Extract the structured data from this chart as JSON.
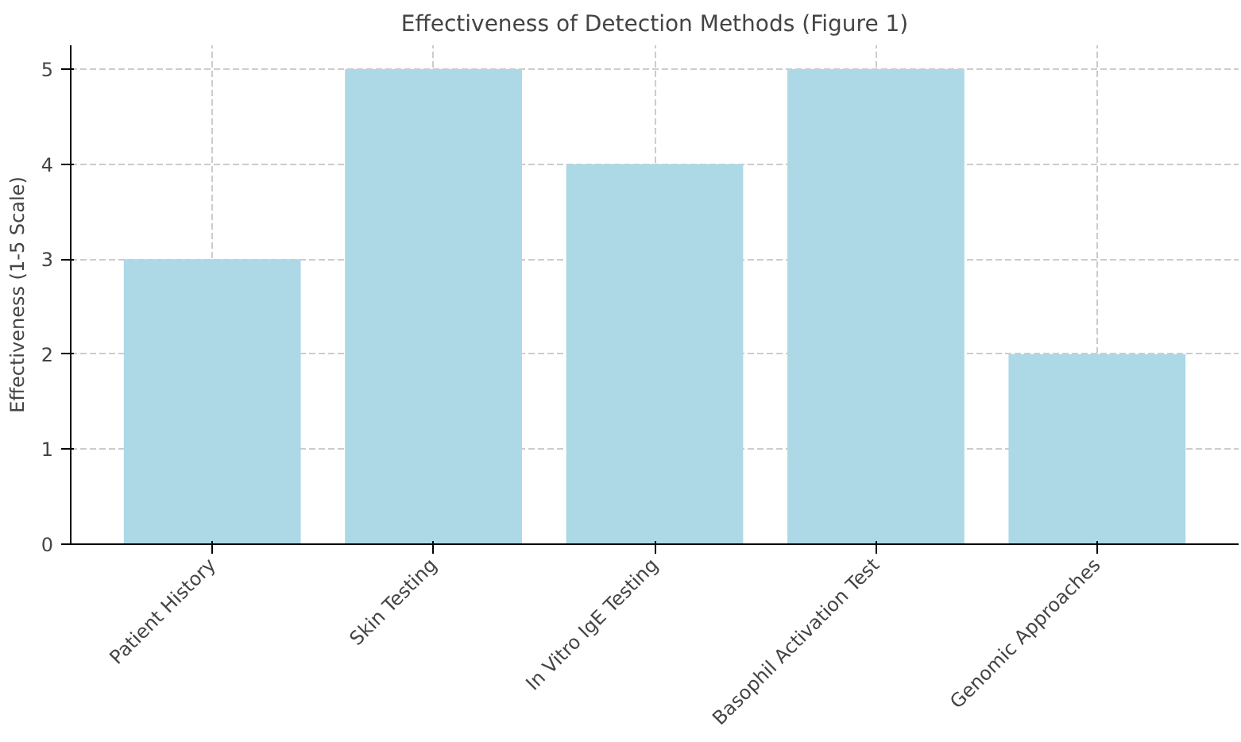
{
  "chart_data": {
    "type": "bar",
    "title": "Effectiveness of Detection Methods (Figure 1)",
    "ylabel": "Effectiveness (1-5 Scale)",
    "categories": [
      "Patient History",
      "Skin Testing",
      "In Vitro IgE Testing",
      "Basophil Activation Test",
      "Genomic Approaches"
    ],
    "values": [
      3,
      5,
      4,
      5,
      2
    ],
    "color": "#add8e6",
    "ylim": [
      0,
      5.25
    ],
    "yticks": [
      0,
      1,
      2,
      3,
      4,
      5
    ],
    "grid": true
  }
}
